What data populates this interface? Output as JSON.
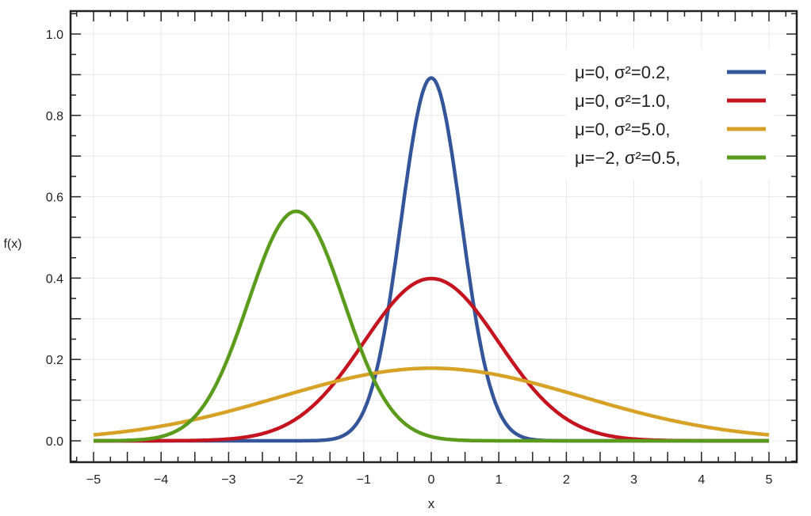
{
  "chart_data": {
    "type": "line",
    "title": "",
    "xlabel": "x",
    "ylabel": "f(x)",
    "xlim": [
      -5,
      5
    ],
    "ylim": [
      0,
      1.0
    ],
    "xticks": [
      "−5",
      "−4",
      "−3",
      "−2",
      "−1",
      "0",
      "1",
      "2",
      "3",
      "4",
      "5"
    ],
    "yticks": [
      "0.0",
      "0.2",
      "0.4",
      "0.6",
      "0.8",
      "1.0"
    ],
    "grid": true,
    "legend_position": "top-right",
    "series": [
      {
        "name": "μ=0,   σ²=0.2,",
        "mu": 0,
        "variance": 0.2,
        "color": "#34559a"
      },
      {
        "name": "μ=0,   σ²=1.0,",
        "mu": 0,
        "variance": 1.0,
        "color": "#c4141f"
      },
      {
        "name": "μ=0,   σ²=5.0,",
        "mu": 0,
        "variance": 5.0,
        "color": "#d6a124"
      },
      {
        "name": "μ=−2, σ²=0.5,",
        "mu": -2,
        "variance": 0.5,
        "color": "#5a9b1c"
      }
    ]
  }
}
